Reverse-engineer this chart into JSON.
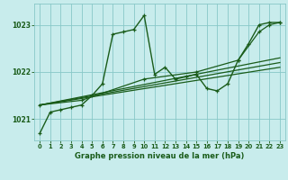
{
  "bg_color": "#c8ecec",
  "grid_color": "#88c8c8",
  "line_color": "#1a5c1a",
  "title": "Graphe pression niveau de la mer (hPa)",
  "xlim": [
    -0.5,
    23.5
  ],
  "ylim": [
    1020.55,
    1023.45
  ],
  "yticks": [
    1021,
    1022,
    1023
  ],
  "xticks": [
    0,
    1,
    2,
    3,
    4,
    5,
    6,
    7,
    8,
    9,
    10,
    11,
    12,
    13,
    14,
    15,
    16,
    17,
    18,
    19,
    20,
    21,
    22,
    23
  ],
  "series": [
    {
      "x": [
        0,
        1,
        2,
        3,
        4,
        5,
        6,
        7,
        8,
        9,
        10,
        11,
        12,
        13,
        14,
        15,
        16,
        17,
        18,
        19,
        20,
        21,
        22,
        23
      ],
      "y": [
        1020.7,
        1021.15,
        1021.2,
        1021.25,
        1021.3,
        1021.5,
        1021.75,
        1022.8,
        1022.85,
        1022.9,
        1023.2,
        1021.95,
        1022.1,
        1021.85,
        1021.9,
        1021.95,
        1021.65,
        1021.6,
        1021.75,
        1022.25,
        1022.6,
        1023.0,
        1023.05,
        1023.05
      ],
      "marker": true,
      "lw": 1.0
    },
    {
      "x": [
        0,
        23
      ],
      "y": [
        1021.3,
        1022.1
      ],
      "marker": false,
      "lw": 0.9
    },
    {
      "x": [
        0,
        23
      ],
      "y": [
        1021.3,
        1022.2
      ],
      "marker": false,
      "lw": 0.9
    },
    {
      "x": [
        0,
        23
      ],
      "y": [
        1021.3,
        1022.3
      ],
      "marker": false,
      "lw": 0.9
    },
    {
      "x": [
        0,
        4,
        10,
        15,
        19,
        21,
        22,
        23
      ],
      "y": [
        1021.3,
        1021.4,
        1021.85,
        1022.0,
        1022.25,
        1022.85,
        1023.0,
        1023.05
      ],
      "marker": true,
      "lw": 0.9
    }
  ]
}
